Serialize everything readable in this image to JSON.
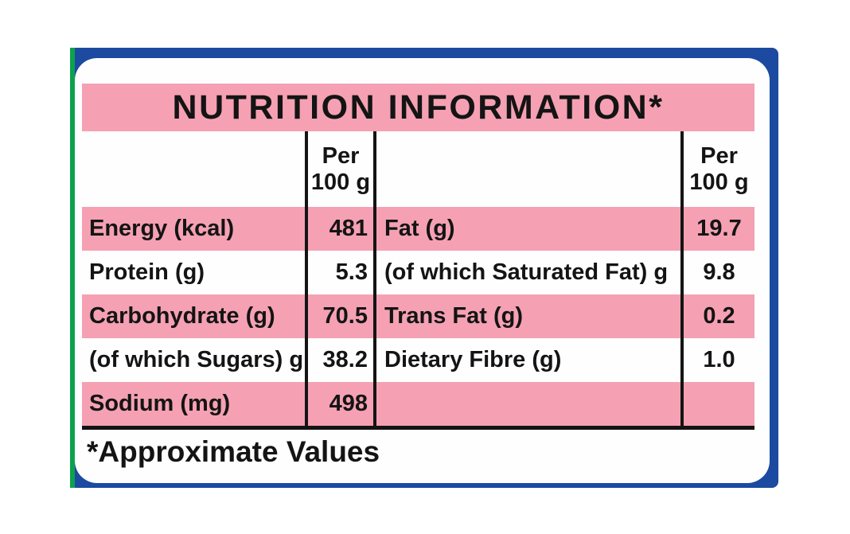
{
  "label": {
    "title": "NUTRITION INFORMATION*",
    "footnote": "*Approximate Values",
    "column_header": {
      "line1": "Per",
      "line2": "100 g"
    },
    "left_rows": [
      {
        "name": "Energy (kcal)",
        "value": "481"
      },
      {
        "name": "Protein (g)",
        "value": "5.3"
      },
      {
        "name": "Carbohydrate (g)",
        "value": "70.5"
      },
      {
        "name": "(of which Sugars) g",
        "value": "38.2"
      },
      {
        "name": "Sodium (mg)",
        "value": "498"
      }
    ],
    "right_rows": [
      {
        "name": "Fat (g)",
        "value": "19.7"
      },
      {
        "name": "(of which Saturated Fat) g",
        "value": "9.8"
      },
      {
        "name": "Trans Fat (g)",
        "value": "0.2"
      },
      {
        "name": "Dietary Fibre (g)",
        "value": "1.0"
      },
      {
        "name": "",
        "value": ""
      }
    ],
    "colors": {
      "row_pink": "#F5A1B3",
      "package_blue": "#1B4AA0",
      "edge_green": "#0CA24C",
      "text_black": "#141414"
    }
  }
}
